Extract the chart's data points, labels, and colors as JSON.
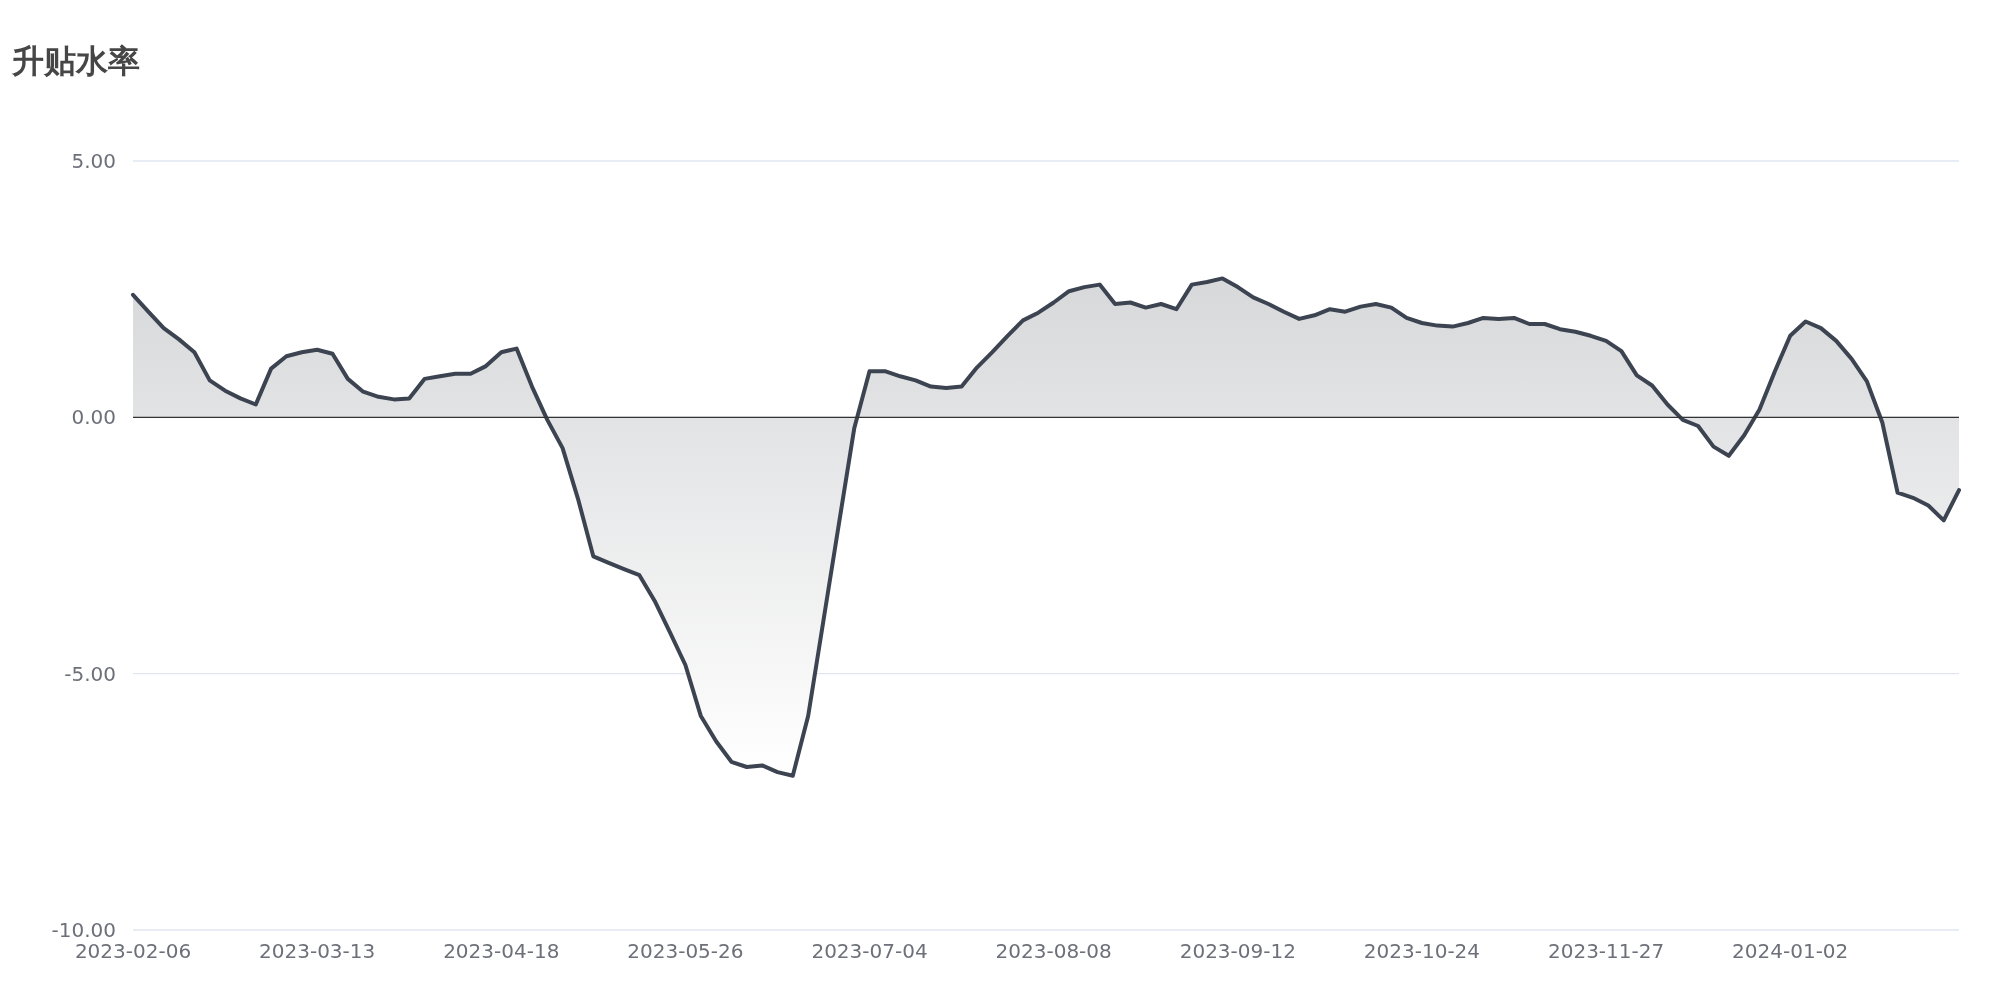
{
  "chart_data": {
    "type": "area",
    "title": "升贴水率",
    "categories": [
      "2023-02-06",
      null,
      null,
      null,
      null,
      null,
      null,
      null,
      null,
      null,
      null,
      null,
      "2023-03-13",
      null,
      null,
      null,
      null,
      null,
      null,
      null,
      null,
      null,
      null,
      null,
      "2023-04-18",
      null,
      null,
      null,
      null,
      null,
      null,
      null,
      null,
      null,
      null,
      null,
      "2023-05-26",
      null,
      null,
      null,
      null,
      null,
      null,
      null,
      null,
      null,
      null,
      null,
      "2023-07-04",
      null,
      null,
      null,
      null,
      null,
      null,
      null,
      null,
      null,
      null,
      null,
      "2023-08-08",
      null,
      null,
      null,
      null,
      null,
      null,
      null,
      null,
      null,
      null,
      null,
      "2023-09-12",
      null,
      null,
      null,
      null,
      null,
      null,
      null,
      null,
      null,
      null,
      null,
      "2023-10-24",
      null,
      null,
      null,
      null,
      null,
      null,
      null,
      null,
      null,
      null,
      null,
      "2023-11-27",
      null,
      null,
      null,
      null,
      null,
      null,
      null,
      null,
      null,
      null,
      null,
      "2024-01-02",
      null,
      null,
      null,
      null,
      null,
      null,
      null,
      null,
      null,
      null,
      null
    ],
    "series": [
      {
        "color": "#3d4451",
        "values": [
          2.39,
          2.06,
          1.74,
          1.52,
          1.27,
          0.72,
          0.52,
          0.37,
          0.25,
          0.95,
          1.19,
          1.27,
          1.32,
          1.24,
          0.75,
          0.5,
          0.4,
          0.35,
          0.37,
          0.75,
          0.8,
          0.85,
          0.85,
          1.0,
          1.27,
          1.34,
          0.6,
          -0.05,
          -0.6,
          -1.59,
          -2.71,
          -2.84,
          -2.96,
          -3.08,
          -3.58,
          -4.2,
          -4.83,
          -5.82,
          -6.32,
          -6.72,
          -6.82,
          -6.79,
          -6.92,
          -6.99,
          -5.82,
          -3.96,
          -2.09,
          -0.22,
          0.9,
          0.9,
          0.8,
          0.72,
          0.6,
          0.57,
          0.6,
          0.97,
          1.27,
          1.59,
          1.89,
          2.04,
          2.24,
          2.46,
          2.54,
          2.59,
          2.21,
          2.24,
          2.14,
          2.21,
          2.11,
          2.59,
          2.64,
          2.71,
          2.54,
          2.34,
          2.21,
          2.06,
          1.92,
          1.99,
          2.11,
          2.06,
          2.16,
          2.21,
          2.14,
          1.94,
          1.84,
          1.79,
          1.77,
          1.84,
          1.94,
          1.92,
          1.94,
          1.82,
          1.82,
          1.72,
          1.67,
          1.59,
          1.49,
          1.29,
          0.82,
          0.62,
          0.25,
          -0.05,
          -0.17,
          -0.57,
          -0.75,
          -0.35,
          0.15,
          0.9,
          1.59,
          1.87,
          1.74,
          1.49,
          1.14,
          0.7,
          -0.1,
          -1.47,
          -1.57,
          -1.72,
          -2.01,
          -1.42
        ]
      }
    ],
    "ylim": [
      -10,
      5
    ],
    "yticks": [
      {
        "value": 5,
        "label": "5.00"
      },
      {
        "value": 0,
        "label": "0.00"
      },
      {
        "value": -5,
        "label": "-5.00"
      },
      {
        "value": -10,
        "label": "-10.00"
      }
    ],
    "grid": "y"
  }
}
